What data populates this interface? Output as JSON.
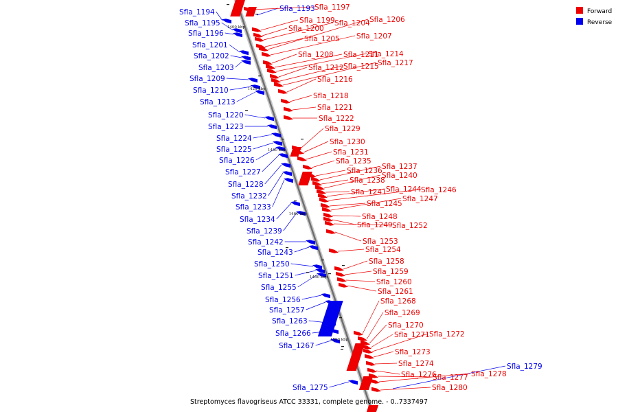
{
  "legend": {
    "forward": {
      "label": "Forward",
      "color": "#ee0000"
    },
    "reverse": {
      "label": "Reverse",
      "color": "#0000ee"
    }
  },
  "caption": "Streptomyces flavogriseus ATCC 33331, complete genome. - 0..7337497",
  "kbp_marks": [
    "1400 kbp",
    "1420 kbp",
    "1440 kbp",
    "1460 kbp",
    "1480 kbp",
    "1500 kbp"
  ],
  "reverse_genes": [
    "Sfla_1194",
    "Sfla_1195",
    "Sfla_1196",
    "Sfla_1201",
    "Sfla_1202",
    "Sfla_1203",
    "Sfla_1209",
    "Sfla_1210",
    "Sfla_1213",
    "Sfla_1220",
    "Sfla_1223",
    "Sfla_1224",
    "Sfla_1225",
    "Sfla_1226",
    "Sfla_1227",
    "Sfla_1228",
    "Sfla_1232",
    "Sfla_1233",
    "Sfla_1234",
    "Sfla_1239",
    "Sfla_1242",
    "Sfla_1243",
    "Sfla_1250",
    "Sfla_1251",
    "Sfla_1255",
    "Sfla_1256",
    "Sfla_1257",
    "Sfla_1263",
    "Sfla_1266",
    "Sfla_1267",
    "Sfla_1275",
    "Sfla_1193",
    "Sfla_1279"
  ],
  "forward_genes": [
    "Sfla_1197",
    "Sfla_1199",
    "Sfla_1200",
    "Sfla_1204",
    "Sfla_1205",
    "Sfla_1206",
    "Sfla_1207",
    "Sfla_1208",
    "Sfla_1211",
    "Sfla_1214",
    "Sfla_1212",
    "Sfla_1215",
    "Sfla_1217",
    "Sfla_1216",
    "Sfla_1218",
    "Sfla_1221",
    "Sfla_1222",
    "Sfla_1229",
    "Sfla_1230",
    "Sfla_1231",
    "Sfla_1235",
    "Sfla_1236",
    "Sfla_1237",
    "Sfla_1238",
    "Sfla_1240",
    "Sfla_1241",
    "Sfla_1244",
    "Sfla_1246",
    "Sfla_1245",
    "Sfla_1247",
    "Sfla_1248",
    "Sfla_1249",
    "Sfla_1252",
    "Sfla_1253",
    "Sfla_1254",
    "Sfla_1258",
    "Sfla_1259",
    "Sfla_1260",
    "Sfla_1261",
    "Sfla_1268",
    "Sfla_1269",
    "Sfla_1270",
    "Sfla_1271",
    "Sfla_1272",
    "Sfla_1273",
    "Sfla_1274",
    "Sfla_1276",
    "Sfla_1277",
    "Sfla_1278",
    "Sfla_1280"
  ]
}
